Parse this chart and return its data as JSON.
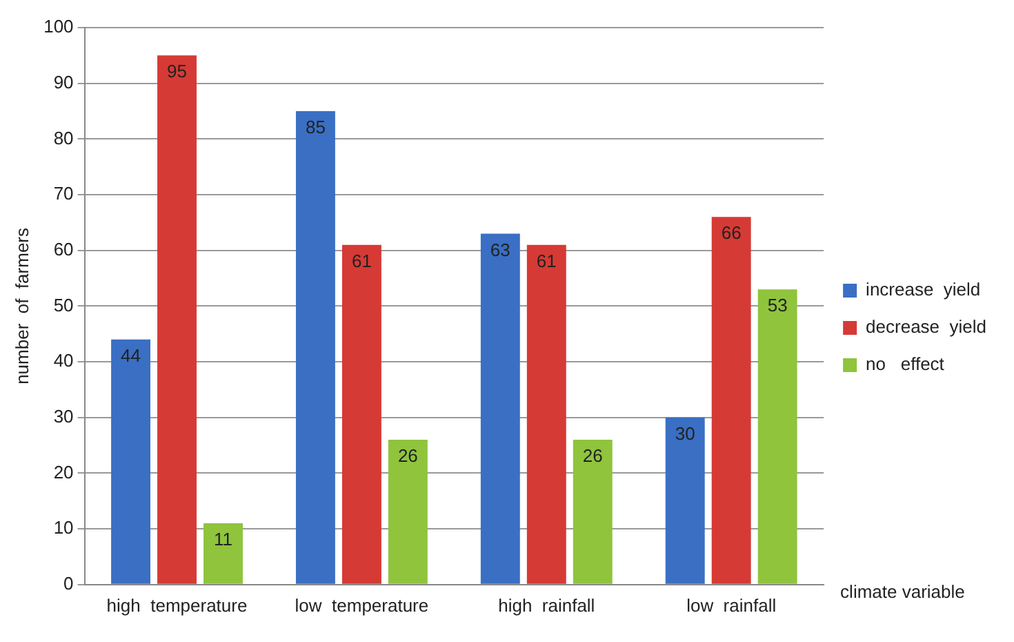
{
  "chart_data": {
    "type": "bar",
    "xlabel": "climate variable",
    "ylabel": "number  of  farmers",
    "categories": [
      "high  temperature",
      "low  temperature",
      "high  rainfall",
      "low  rainfall"
    ],
    "series": [
      {
        "name": "increase  yield",
        "color": "#3a6fc4",
        "values": [
          44,
          85,
          63,
          30
        ]
      },
      {
        "name": "decrease  yield",
        "color": "#d63a35",
        "values": [
          95,
          61,
          61,
          66
        ]
      },
      {
        "name": "no   effect",
        "color": "#8fc43c",
        "values": [
          11,
          26,
          26,
          53
        ]
      }
    ],
    "ylim": [
      0,
      100
    ],
    "yticks": [
      0,
      10,
      20,
      30,
      40,
      50,
      60,
      70,
      80,
      90,
      100
    ],
    "grid": "y",
    "legend": "right",
    "data_labels": true
  }
}
